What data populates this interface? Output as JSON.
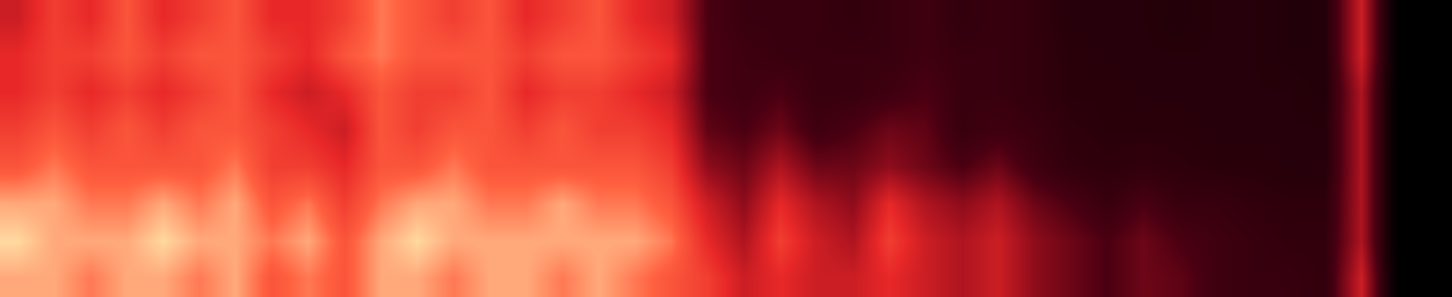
{
  "chart_data": {
    "type": "heatmap",
    "tick_labels": false,
    "cells": [
      [
        0.45,
        0.55,
        0.5,
        0.6,
        0.5,
        0.55,
        0.6,
        0.5,
        0.5,
        0.55,
        0.65,
        0.6,
        0.55,
        0.6,
        0.5,
        0.55,
        0.6,
        0.5,
        0.45,
        0.25,
        0.2,
        0.2,
        0.2,
        0.18,
        0.2,
        0.22,
        0.18,
        0.2,
        0.18,
        0.15,
        0.15,
        0.15,
        0.14,
        0.15,
        0.15,
        0.14,
        0.14,
        0.45,
        0,
        0
      ],
      [
        0.5,
        0.55,
        0.55,
        0.6,
        0.55,
        0.6,
        0.6,
        0.55,
        0.5,
        0.6,
        0.65,
        0.6,
        0.6,
        0.6,
        0.55,
        0.6,
        0.6,
        0.55,
        0.5,
        0.25,
        0.22,
        0.2,
        0.2,
        0.2,
        0.2,
        0.22,
        0.2,
        0.2,
        0.18,
        0.16,
        0.15,
        0.15,
        0.15,
        0.15,
        0.15,
        0.14,
        0.14,
        0.45,
        0,
        0
      ],
      [
        0.5,
        0.55,
        0.5,
        0.55,
        0.5,
        0.55,
        0.6,
        0.5,
        0.45,
        0.5,
        0.6,
        0.55,
        0.55,
        0.6,
        0.5,
        0.55,
        0.55,
        0.5,
        0.45,
        0.25,
        0.22,
        0.25,
        0.2,
        0.2,
        0.22,
        0.25,
        0.2,
        0.2,
        0.18,
        0.16,
        0.16,
        0.15,
        0.15,
        0.15,
        0.15,
        0.15,
        0.14,
        0.4,
        0,
        0
      ],
      [
        0.55,
        0.6,
        0.55,
        0.6,
        0.55,
        0.6,
        0.6,
        0.55,
        0.5,
        0.45,
        0.6,
        0.55,
        0.6,
        0.6,
        0.55,
        0.6,
        0.55,
        0.55,
        0.5,
        0.28,
        0.25,
        0.3,
        0.22,
        0.25,
        0.3,
        0.28,
        0.2,
        0.22,
        0.2,
        0.17,
        0.16,
        0.16,
        0.16,
        0.15,
        0.15,
        0.15,
        0.15,
        0.4,
        0,
        0
      ],
      [
        0.6,
        0.65,
        0.6,
        0.6,
        0.6,
        0.6,
        0.65,
        0.55,
        0.55,
        0.5,
        0.6,
        0.6,
        0.65,
        0.6,
        0.6,
        0.6,
        0.6,
        0.6,
        0.55,
        0.35,
        0.3,
        0.4,
        0.3,
        0.3,
        0.35,
        0.3,
        0.25,
        0.3,
        0.22,
        0.18,
        0.17,
        0.18,
        0.17,
        0.16,
        0.16,
        0.15,
        0.15,
        0.4,
        0,
        0
      ],
      [
        0.7,
        0.7,
        0.65,
        0.65,
        0.7,
        0.65,
        0.7,
        0.6,
        0.65,
        0.55,
        0.65,
        0.7,
        0.7,
        0.65,
        0.65,
        0.7,
        0.65,
        0.65,
        0.6,
        0.45,
        0.35,
        0.5,
        0.4,
        0.35,
        0.5,
        0.4,
        0.35,
        0.4,
        0.3,
        0.25,
        0.2,
        0.25,
        0.2,
        0.2,
        0.18,
        0.17,
        0.17,
        0.4,
        0,
        0
      ],
      [
        0.75,
        0.7,
        0.7,
        0.7,
        0.75,
        0.7,
        0.7,
        0.65,
        0.7,
        0.6,
        0.7,
        0.75,
        0.7,
        0.7,
        0.7,
        0.7,
        0.7,
        0.7,
        0.65,
        0.5,
        0.4,
        0.55,
        0.45,
        0.4,
        0.55,
        0.45,
        0.4,
        0.45,
        0.35,
        0.3,
        0.25,
        0.3,
        0.25,
        0.22,
        0.2,
        0.18,
        0.18,
        0.4,
        0,
        0
      ],
      [
        0.7,
        0.7,
        0.65,
        0.7,
        0.7,
        0.65,
        0.7,
        0.6,
        0.65,
        0.6,
        0.7,
        0.7,
        0.65,
        0.7,
        0.7,
        0.65,
        0.7,
        0.65,
        0.6,
        0.55,
        0.45,
        0.5,
        0.45,
        0.45,
        0.5,
        0.45,
        0.4,
        0.45,
        0.35,
        0.3,
        0.25,
        0.3,
        0.28,
        0.22,
        0.2,
        0.2,
        0.18,
        0.45,
        0,
        0
      ]
    ]
  }
}
